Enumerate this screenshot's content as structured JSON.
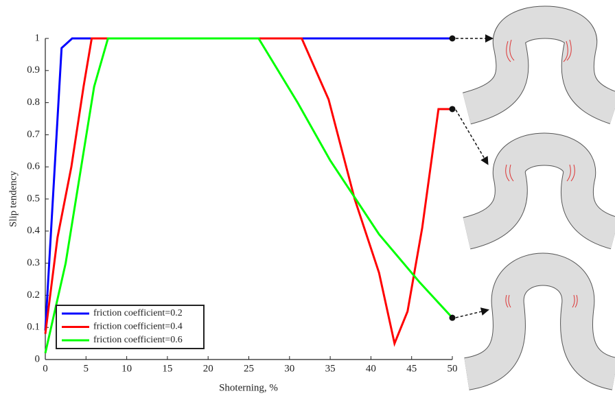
{
  "chart_data": {
    "type": "line",
    "x_label": "Shoterning, %",
    "y_label": "Slip tendency",
    "xlim": [
      0,
      50
    ],
    "xticks": [
      0,
      5,
      10,
      15,
      20,
      25,
      30,
      35,
      40,
      45,
      50
    ],
    "ylim": [
      0,
      1
    ],
    "yticks": [
      0,
      0.1,
      0.2,
      0.3,
      0.4,
      0.5,
      0.6,
      0.7,
      0.8,
      0.9,
      1
    ],
    "legend": "lower left",
    "series": [
      {
        "name": "friction coefficient=0.2",
        "color": "#0000ff",
        "x": [
          0,
          2,
          3.3,
          50
        ],
        "values": [
          0.09,
          0.97,
          1,
          1
        ]
      },
      {
        "name": "friction coefficient=0.4",
        "color": "#ff0000",
        "x": [
          0,
          1.5,
          3.2,
          4.7,
          5.7,
          31.5,
          34.8,
          38,
          41,
          42.9,
          44.5,
          46.3,
          48.3,
          50
        ],
        "values": [
          0.08,
          0.38,
          0.6,
          0.85,
          1,
          1,
          0.81,
          0.5,
          0.27,
          0.05,
          0.15,
          0.41,
          0.78,
          0.78
        ]
      },
      {
        "name": "friction coefficient=0.6",
        "color": "#00ff00",
        "x": [
          0,
          2.5,
          6,
          7.7,
          26.2,
          31,
          35,
          41,
          46,
          50
        ],
        "values": [
          0.02,
          0.3,
          0.85,
          1,
          1,
          0.8,
          0.62,
          0.39,
          0.24,
          0.13
        ]
      }
    ]
  }
}
